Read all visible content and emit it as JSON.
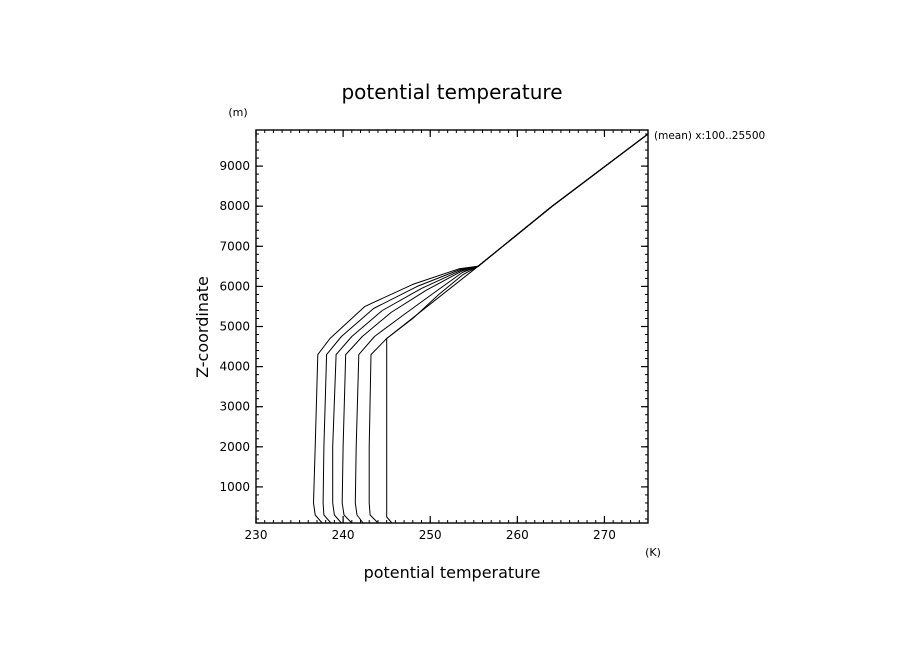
{
  "chart_data": {
    "type": "line",
    "title": "potential temperature",
    "xlabel": "potential temperature",
    "xunit": "(K)",
    "ylabel": "Z-coordinate",
    "yunit": "(m)",
    "annotation": "(mean) x:100..25500",
    "xlim": [
      230,
      275
    ],
    "ylim": [
      100,
      9900
    ],
    "xticks": [
      230,
      240,
      250,
      260,
      270
    ],
    "yticks": [
      1000,
      2000,
      3000,
      4000,
      5000,
      6000,
      7000,
      8000,
      9000
    ],
    "grid": false,
    "series": [
      {
        "x": [
          245.6,
          245.0,
          245.0,
          245.0,
          245.0,
          255.5,
          264.0,
          275.0
        ],
        "y": [
          100,
          250,
          500,
          2000,
          4700,
          6500,
          8000,
          9800
        ]
      },
      {
        "x": [
          244.0,
          243.1,
          243.0,
          243.0,
          243.2,
          245.0,
          248.0,
          251.0,
          253.8,
          255.5,
          264.0,
          275.0
        ],
        "y": [
          100,
          300,
          600,
          2000,
          4300,
          4700,
          5200,
          5800,
          6300,
          6500,
          8000,
          9800
        ]
      },
      {
        "x": [
          242.3,
          241.6,
          241.4,
          241.5,
          241.8,
          243.6,
          247.0,
          250.5,
          253.7,
          255.5,
          264.0,
          275.0
        ],
        "y": [
          100,
          300,
          600,
          2000,
          4300,
          4750,
          5300,
          5850,
          6350,
          6500,
          8000,
          9800
        ]
      },
      {
        "x": [
          241.0,
          240.1,
          239.9,
          240.0,
          240.3,
          242.2,
          245.5,
          249.5,
          253.6,
          255.5,
          264.0,
          275.0
        ],
        "y": [
          100,
          300,
          600,
          2000,
          4300,
          4750,
          5350,
          5900,
          6380,
          6500,
          8000,
          9800
        ]
      },
      {
        "x": [
          239.8,
          239.0,
          238.8,
          238.8,
          239.2,
          241.0,
          244.5,
          249.0,
          253.5,
          255.5,
          264.0,
          275.0
        ],
        "y": [
          100,
          300,
          600,
          2000,
          4300,
          4750,
          5400,
          5950,
          6400,
          6500,
          8000,
          9800
        ]
      },
      {
        "x": [
          238.6,
          237.8,
          237.7,
          237.8,
          238.1,
          239.8,
          243.5,
          248.5,
          253.4,
          255.5,
          264.0,
          275.0
        ],
        "y": [
          100,
          300,
          600,
          2000,
          4300,
          4750,
          5450,
          6000,
          6420,
          6500,
          8000,
          9800
        ]
      },
      {
        "x": [
          237.6,
          236.8,
          236.6,
          236.8,
          237.1,
          238.5,
          242.5,
          248.0,
          253.3,
          255.5,
          264.0,
          275.0
        ],
        "y": [
          100,
          300,
          600,
          2000,
          4300,
          4700,
          5500,
          6050,
          6440,
          6500,
          8000,
          9800
        ]
      }
    ]
  }
}
